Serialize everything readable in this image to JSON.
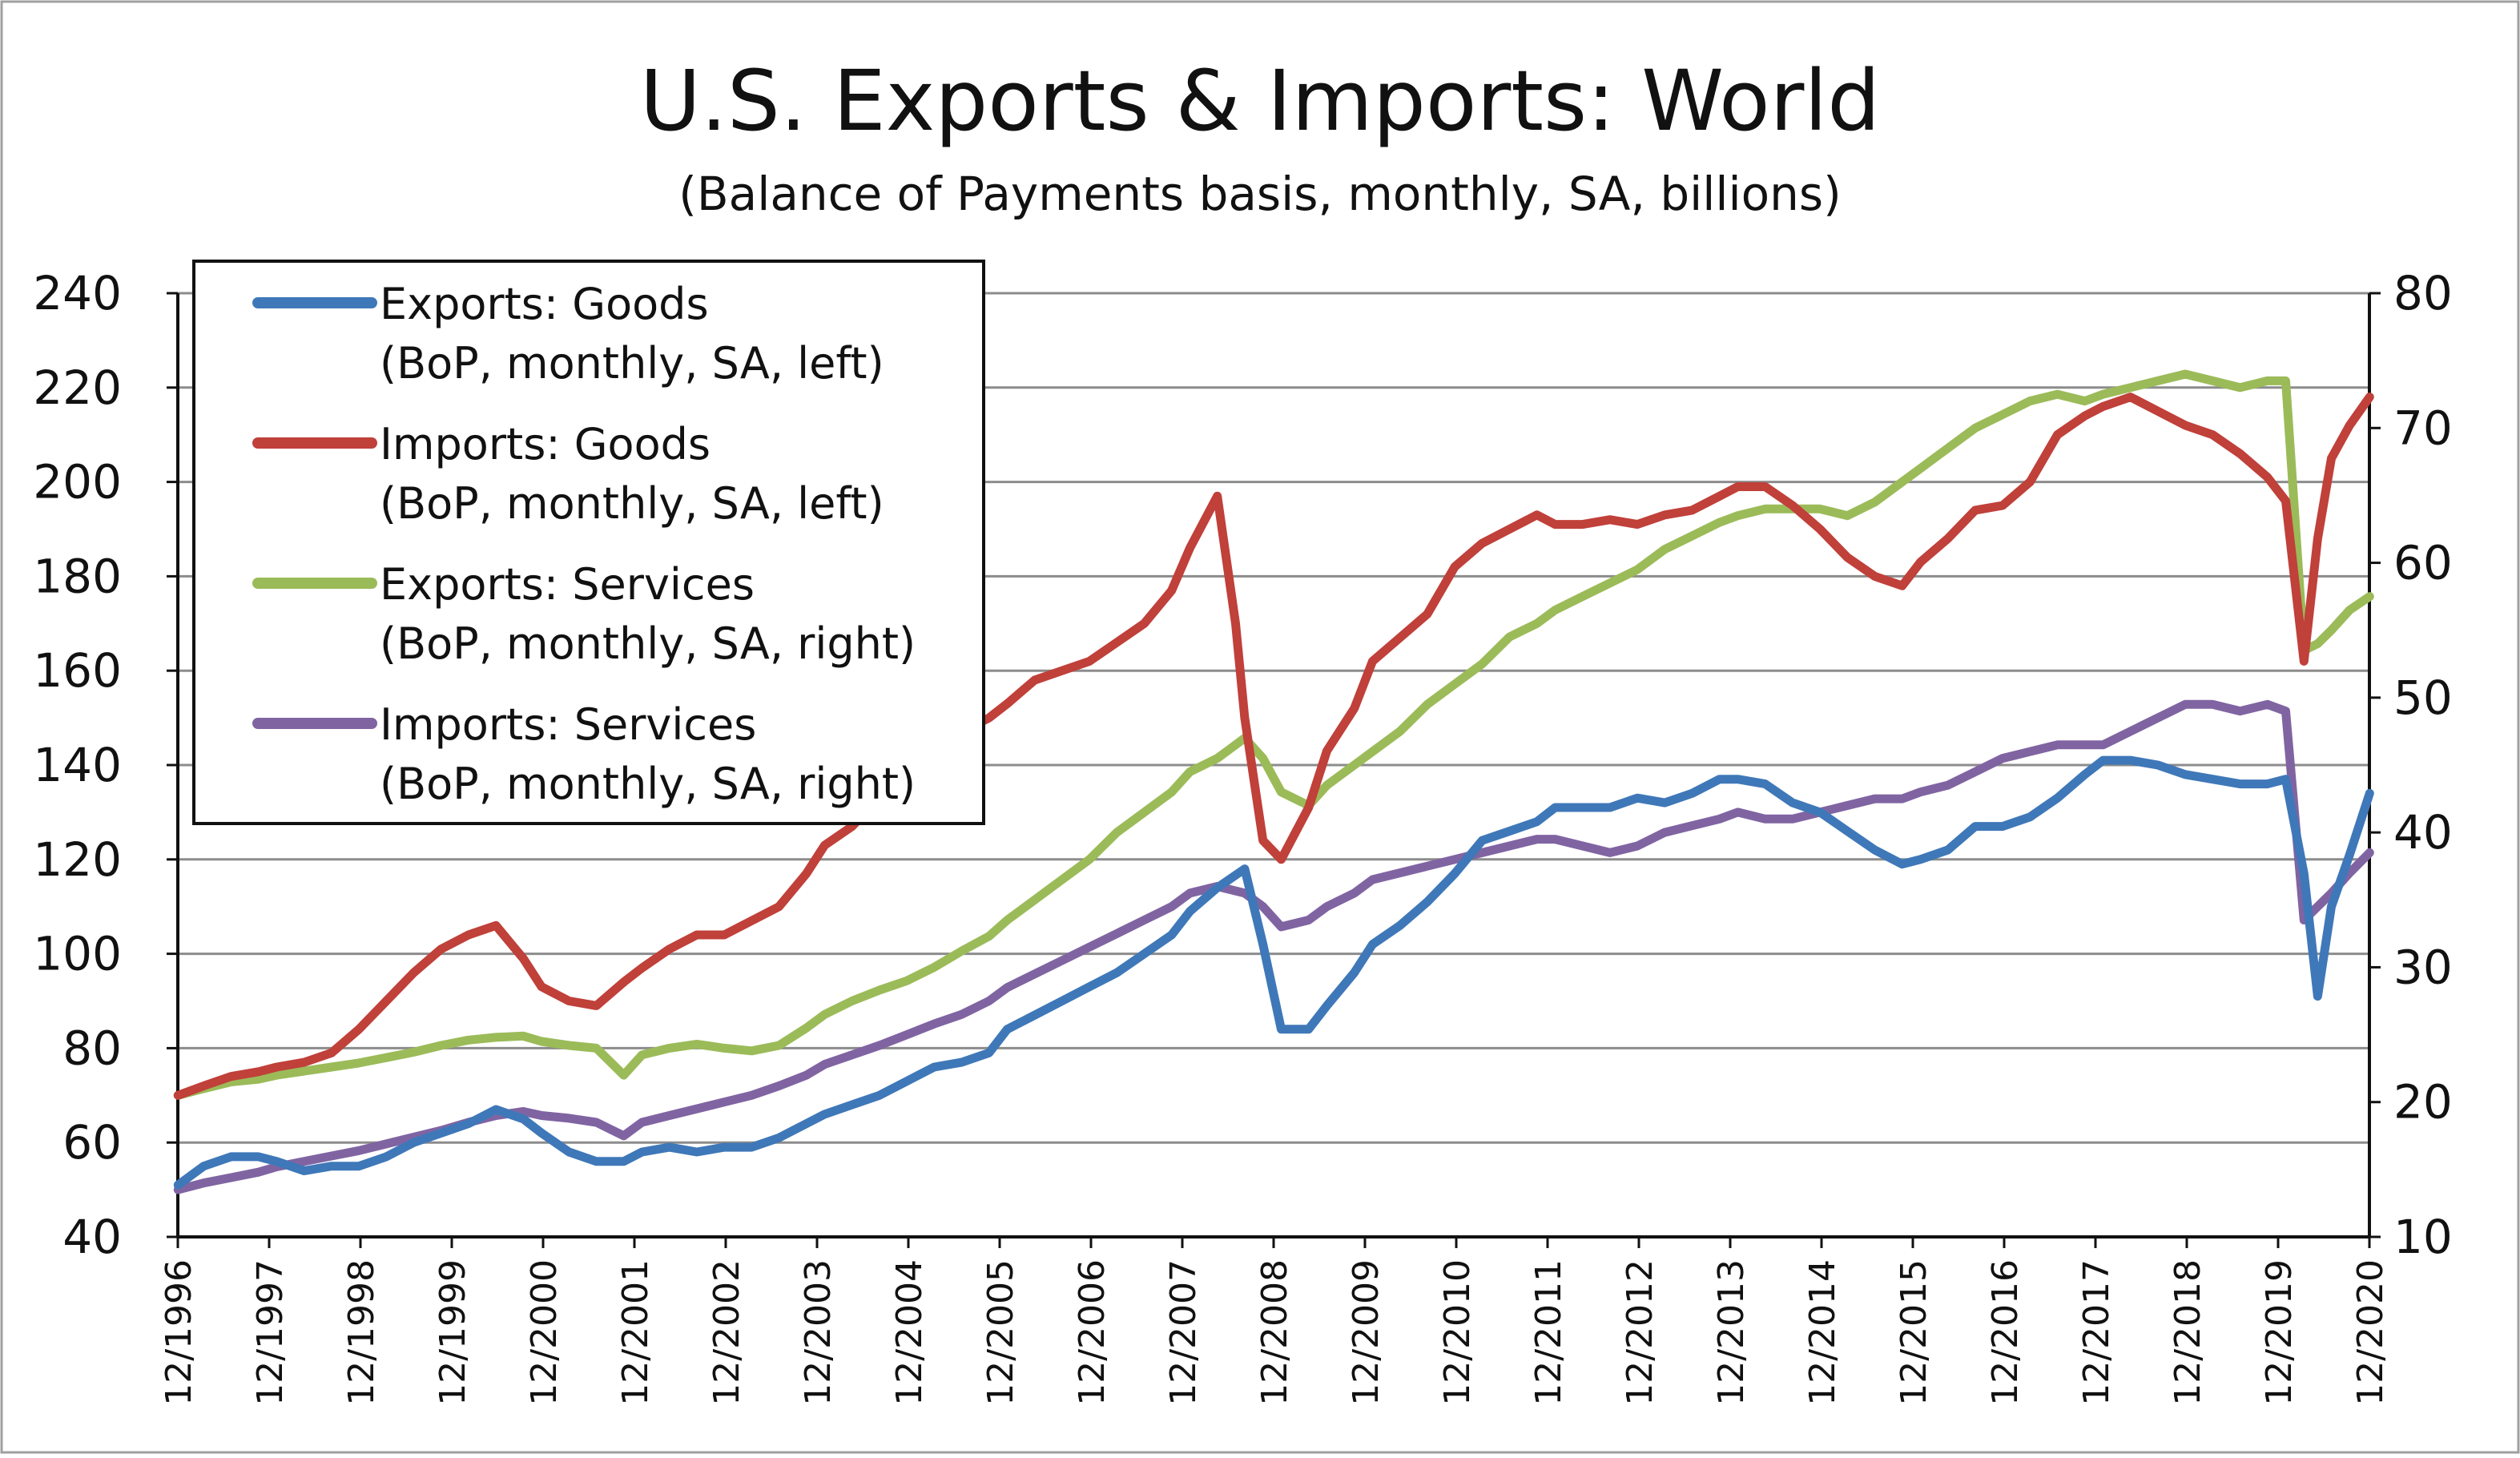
{
  "chart_data": {
    "type": "line",
    "title": "U.S. Exports & Imports: World",
    "subtitle": "(Balance of Payments basis, monthly, SA, billions)",
    "y_left": {
      "ylim": [
        40,
        240
      ],
      "ticks": [
        40,
        60,
        80,
        100,
        120,
        140,
        160,
        180,
        200,
        220,
        240
      ]
    },
    "y_right": {
      "ylim": [
        10,
        80
      ],
      "ticks": [
        10,
        20,
        30,
        40,
        50,
        60,
        70,
        80
      ]
    },
    "x_tick_labels": [
      "12/1996",
      "12/1997",
      "12/1998",
      "12/1999",
      "12/2000",
      "12/2001",
      "12/2002",
      "12/2003",
      "12/2004",
      "12/2005",
      "12/2006",
      "12/2007",
      "12/2008",
      "12/2009",
      "12/2010",
      "12/2011",
      "12/2012",
      "12/2013",
      "12/2014",
      "12/2015",
      "12/2016",
      "12/2017",
      "12/2018",
      "12/2019",
      "12/2020"
    ],
    "x_range": [
      1996.917,
      2020.917
    ],
    "legend_position": "top-left",
    "grid": true,
    "series": [
      {
        "name": "Exports: Goods",
        "legend_line1": "Exports: Goods",
        "legend_line2": "(BoP, monthly, SA, left)",
        "axis": "left",
        "color": "#3f78b8",
        "x": [
          1996.92,
          1997.2,
          1997.5,
          1997.8,
          1998.0,
          1998.3,
          1998.6,
          1998.9,
          1999.2,
          1999.5,
          1999.8,
          2000.1,
          2000.4,
          2000.7,
          2000.9,
          2001.2,
          2001.5,
          2001.8,
          2002.0,
          2002.3,
          2002.6,
          2002.9,
          2003.2,
          2003.5,
          2003.8,
          2004.0,
          2004.3,
          2004.6,
          2004.9,
          2005.2,
          2005.5,
          2005.8,
          2006.0,
          2006.3,
          2006.6,
          2006.9,
          2007.2,
          2007.5,
          2007.8,
          2008.0,
          2008.3,
          2008.6,
          2008.8,
          2009.0,
          2009.3,
          2009.5,
          2009.8,
          2010.0,
          2010.3,
          2010.6,
          2010.9,
          2011.2,
          2011.5,
          2011.8,
          2012.0,
          2012.3,
          2012.6,
          2012.9,
          2013.2,
          2013.5,
          2013.8,
          2014.0,
          2014.3,
          2014.6,
          2014.9,
          2015.2,
          2015.5,
          2015.8,
          2016.0,
          2016.3,
          2016.6,
          2016.9,
          2017.2,
          2017.5,
          2017.8,
          2018.0,
          2018.3,
          2018.6,
          2018.9,
          2019.2,
          2019.5,
          2019.8,
          2020.0,
          2020.2,
          2020.35,
          2020.5,
          2020.7,
          2020.92
        ],
        "values": [
          51,
          55,
          57,
          57,
          56,
          54,
          55,
          55,
          57,
          60,
          62,
          64,
          67,
          65,
          62,
          58,
          56,
          56,
          58,
          59,
          58,
          59,
          59,
          61,
          64,
          66,
          68,
          70,
          73,
          76,
          77,
          79,
          84,
          87,
          90,
          93,
          96,
          100,
          104,
          109,
          114,
          118,
          102,
          84,
          84,
          89,
          96,
          102,
          106,
          111,
          117,
          124,
          126,
          128,
          131,
          131,
          131,
          133,
          132,
          134,
          137,
          137,
          136,
          132,
          130,
          126,
          122,
          119,
          120,
          122,
          127,
          127,
          129,
          133,
          138,
          141,
          141,
          140,
          138,
          137,
          136,
          136,
          137,
          117,
          91,
          110,
          121,
          134
        ]
      },
      {
        "name": "Imports: Goods",
        "legend_line1": "Imports: Goods",
        "legend_line2": "(BoP, monthly, SA, left)",
        "axis": "left",
        "color": "#c0403a",
        "x": [
          1996.92,
          1997.2,
          1997.5,
          1997.8,
          1998.0,
          1998.3,
          1998.6,
          1998.9,
          1999.2,
          1999.5,
          1999.8,
          2000.1,
          2000.4,
          2000.7,
          2000.9,
          2001.2,
          2001.5,
          2001.8,
          2002.0,
          2002.3,
          2002.6,
          2002.9,
          2003.2,
          2003.5,
          2003.8,
          2004.0,
          2004.3,
          2004.6,
          2004.9,
          2005.2,
          2005.5,
          2005.8,
          2006.0,
          2006.3,
          2006.6,
          2006.9,
          2007.2,
          2007.5,
          2007.8,
          2008.0,
          2008.3,
          2008.5,
          2008.6,
          2008.8,
          2009.0,
          2009.3,
          2009.5,
          2009.8,
          2010.0,
          2010.3,
          2010.6,
          2010.9,
          2011.2,
          2011.5,
          2011.8,
          2012.0,
          2012.3,
          2012.6,
          2012.9,
          2013.2,
          2013.5,
          2013.8,
          2014.0,
          2014.3,
          2014.6,
          2014.9,
          2015.2,
          2015.5,
          2015.8,
          2016.0,
          2016.3,
          2016.6,
          2016.9,
          2017.2,
          2017.5,
          2017.8,
          2018.0,
          2018.3,
          2018.6,
          2018.9,
          2019.2,
          2019.5,
          2019.8,
          2020.0,
          2020.2,
          2020.35,
          2020.5,
          2020.7,
          2020.92
        ],
        "values": [
          70,
          72,
          74,
          75,
          76,
          77,
          79,
          84,
          90,
          96,
          101,
          104,
          106,
          99,
          93,
          90,
          89,
          94,
          97,
          101,
          104,
          104,
          107,
          110,
          117,
          123,
          127,
          133,
          138,
          143,
          147,
          150,
          153,
          158,
          160,
          162,
          166,
          170,
          177,
          186,
          197,
          170,
          150,
          124,
          120,
          131,
          143,
          152,
          162,
          167,
          172,
          182,
          187,
          190,
          193,
          191,
          191,
          192,
          191,
          193,
          194,
          197,
          199,
          199,
          195,
          190,
          184,
          180,
          178,
          183,
          188,
          194,
          195,
          200,
          210,
          214,
          216,
          218,
          215,
          212,
          210,
          206,
          201,
          196,
          162,
          188,
          205,
          212,
          218
        ]
      },
      {
        "name": "Exports: Services",
        "legend_line1": "Exports: Services",
        "legend_line2": "(BoP, monthly, SA, right)",
        "axis": "right",
        "color": "#9bbb59",
        "x": [
          1996.92,
          1997.2,
          1997.5,
          1997.8,
          1998.0,
          1998.3,
          1998.6,
          1998.9,
          1999.2,
          1999.5,
          1999.8,
          2000.1,
          2000.4,
          2000.7,
          2000.9,
          2001.2,
          2001.5,
          2001.8,
          2002.0,
          2002.3,
          2002.6,
          2002.9,
          2003.2,
          2003.5,
          2003.8,
          2004.0,
          2004.3,
          2004.6,
          2004.9,
          2005.2,
          2005.5,
          2005.8,
          2006.0,
          2006.3,
          2006.6,
          2006.9,
          2007.2,
          2007.5,
          2007.8,
          2008.0,
          2008.3,
          2008.6,
          2008.8,
          2009.0,
          2009.3,
          2009.5,
          2009.8,
          2010.0,
          2010.3,
          2010.6,
          2010.9,
          2011.2,
          2011.5,
          2011.8,
          2012.0,
          2012.3,
          2012.6,
          2012.9,
          2013.2,
          2013.5,
          2013.8,
          2014.0,
          2014.3,
          2014.6,
          2014.9,
          2015.2,
          2015.5,
          2015.8,
          2016.0,
          2016.3,
          2016.6,
          2016.9,
          2017.2,
          2017.5,
          2017.8,
          2018.0,
          2018.3,
          2018.6,
          2018.9,
          2019.2,
          2019.5,
          2019.8,
          2020.0,
          2020.2,
          2020.35,
          2020.5,
          2020.7,
          2020.92
        ],
        "values": [
          20.5,
          21.0,
          21.5,
          21.7,
          22.0,
          22.3,
          22.6,
          22.9,
          23.3,
          23.7,
          24.2,
          24.6,
          24.8,
          24.9,
          24.5,
          24.2,
          24.0,
          22.0,
          23.5,
          24.0,
          24.3,
          24.0,
          23.8,
          24.2,
          25.5,
          26.5,
          27.5,
          28.3,
          29.0,
          30.0,
          31.2,
          32.3,
          33.5,
          35.0,
          36.5,
          38.0,
          40.0,
          41.5,
          43.0,
          44.5,
          45.5,
          47.0,
          45.5,
          43.0,
          42.0,
          43.5,
          45.0,
          46.0,
          47.5,
          49.5,
          51.0,
          52.5,
          54.5,
          55.5,
          56.5,
          57.5,
          58.5,
          59.5,
          61.0,
          62.0,
          63.0,
          63.5,
          64.0,
          64.0,
          64.0,
          63.5,
          64.5,
          66.0,
          67.0,
          68.5,
          70.0,
          71.0,
          72.0,
          72.5,
          72.0,
          72.5,
          73.0,
          73.5,
          74.0,
          73.5,
          73.0,
          73.5,
          73.5,
          53.5,
          54.0,
          55.0,
          56.5,
          57.5
        ]
      },
      {
        "name": "Imports: Services",
        "legend_line1": "Imports: Services",
        "legend_line2": "(BoP, monthly, SA, right)",
        "axis": "right",
        "color": "#8064a2",
        "x": [
          1996.92,
          1997.2,
          1997.5,
          1997.8,
          1998.0,
          1998.3,
          1998.6,
          1998.9,
          1999.2,
          1999.5,
          1999.8,
          2000.1,
          2000.4,
          2000.7,
          2000.9,
          2001.2,
          2001.5,
          2001.8,
          2002.0,
          2002.3,
          2002.6,
          2002.9,
          2003.2,
          2003.5,
          2003.8,
          2004.0,
          2004.3,
          2004.6,
          2004.9,
          2005.2,
          2005.5,
          2005.8,
          2006.0,
          2006.3,
          2006.6,
          2006.9,
          2007.2,
          2007.5,
          2007.8,
          2008.0,
          2008.3,
          2008.6,
          2008.8,
          2009.0,
          2009.3,
          2009.5,
          2009.8,
          2010.0,
          2010.3,
          2010.6,
          2010.9,
          2011.2,
          2011.5,
          2011.8,
          2012.0,
          2012.3,
          2012.6,
          2012.9,
          2013.2,
          2013.5,
          2013.8,
          2014.0,
          2014.3,
          2014.6,
          2014.9,
          2015.2,
          2015.5,
          2015.8,
          2016.0,
          2016.3,
          2016.6,
          2016.9,
          2017.2,
          2017.5,
          2017.8,
          2018.0,
          2018.3,
          2018.6,
          2018.9,
          2019.2,
          2019.5,
          2019.8,
          2020.0,
          2020.2,
          2020.35,
          2020.5,
          2020.7,
          2020.92
        ],
        "values": [
          13.5,
          14.0,
          14.4,
          14.8,
          15.2,
          15.6,
          16.0,
          16.4,
          16.9,
          17.4,
          17.9,
          18.5,
          19.0,
          19.3,
          19.0,
          18.8,
          18.5,
          17.5,
          18.5,
          19.0,
          19.5,
          20.0,
          20.5,
          21.2,
          22.0,
          22.8,
          23.5,
          24.2,
          25.0,
          25.8,
          26.5,
          27.5,
          28.5,
          29.5,
          30.5,
          31.5,
          32.5,
          33.5,
          34.5,
          35.5,
          36.0,
          35.5,
          34.5,
          33.0,
          33.5,
          34.5,
          35.5,
          36.5,
          37.0,
          37.5,
          38.0,
          38.5,
          39.0,
          39.5,
          39.5,
          39.0,
          38.5,
          39.0,
          40.0,
          40.5,
          41.0,
          41.5,
          41.0,
          41.0,
          41.5,
          42.0,
          42.5,
          42.5,
          43.0,
          43.5,
          44.5,
          45.5,
          46.0,
          46.5,
          46.5,
          46.5,
          47.5,
          48.5,
          49.5,
          49.5,
          49.0,
          49.5,
          49.0,
          33.5,
          34.5,
          35.5,
          37.0,
          38.5
        ]
      }
    ]
  }
}
